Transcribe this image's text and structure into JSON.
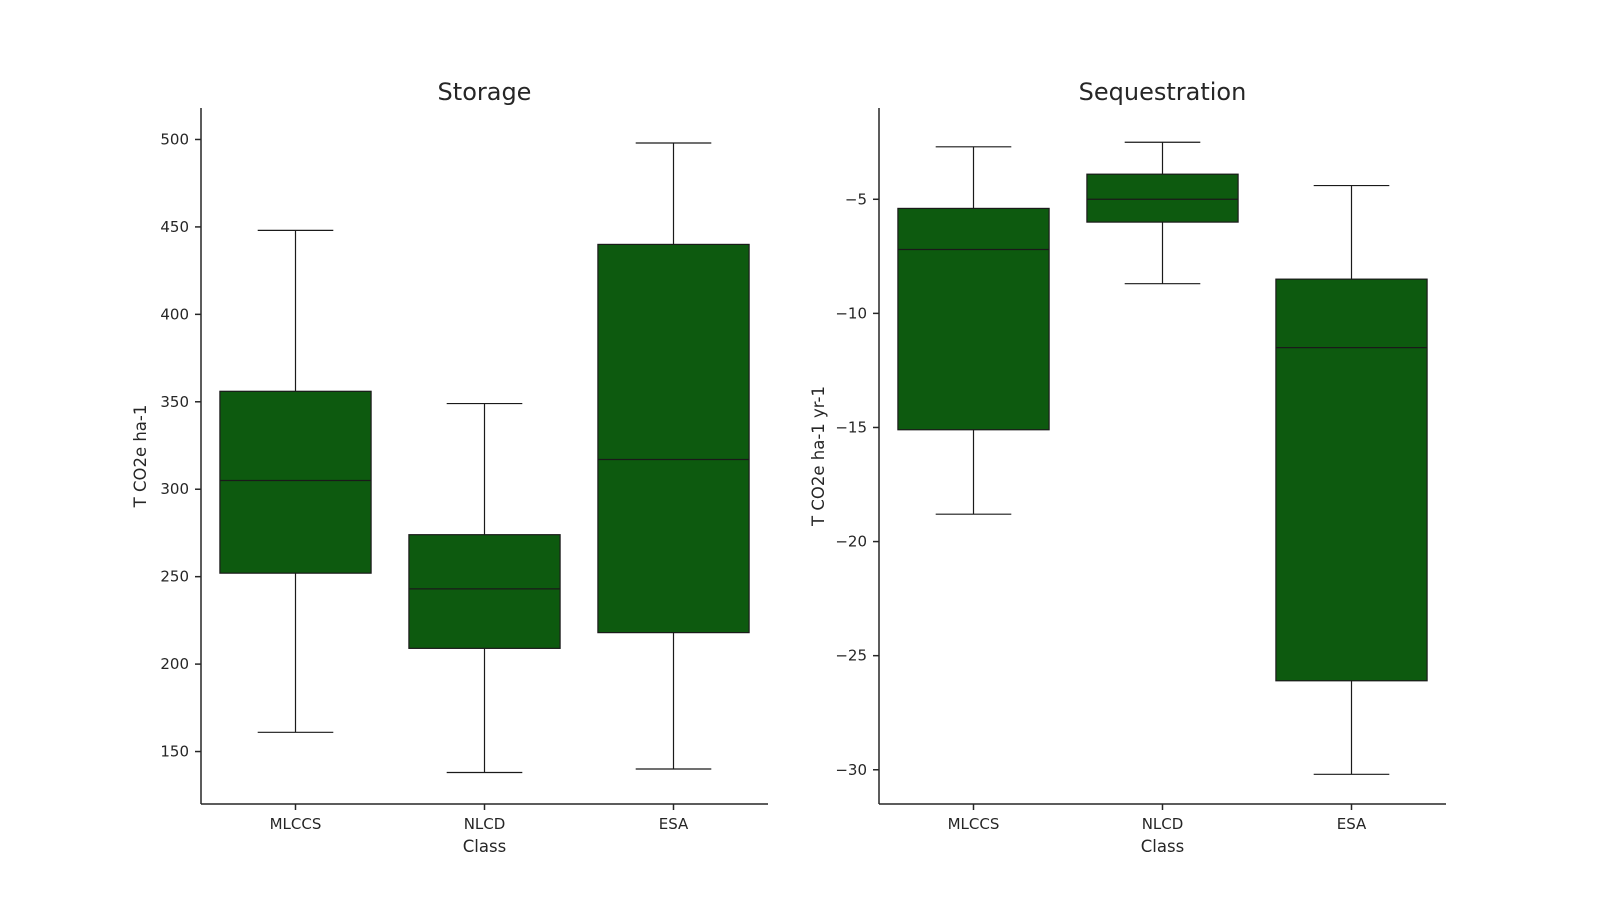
{
  "chart_data": [
    {
      "type": "box",
      "title": "Storage",
      "xlabel": "Class",
      "ylabel": "T CO2e ha-1",
      "categories": [
        "MLCCS",
        "NLCD",
        "ESA"
      ],
      "ylim": [
        120,
        518
      ],
      "yticks": [
        150,
        200,
        250,
        300,
        350,
        400,
        450,
        500
      ],
      "ytick_labels": [
        "150",
        "200",
        "250",
        "300",
        "350",
        "400",
        "450",
        "500"
      ],
      "boxes": [
        {
          "whisker_low": 161,
          "q1": 252,
          "median": 305,
          "q3": 356,
          "whisker_high": 448
        },
        {
          "whisker_low": 138,
          "q1": 209,
          "median": 243,
          "q3": 274,
          "whisker_high": 349
        },
        {
          "whisker_low": 140,
          "q1": 218,
          "median": 317,
          "q3": 440,
          "whisker_high": 498
        }
      ],
      "box_color": "#0d5a0f"
    },
    {
      "type": "box",
      "title": "Sequestration",
      "xlabel": "Class",
      "ylabel": "T CO2e ha-1 yr-1",
      "categories": [
        "MLCCS",
        "NLCD",
        "ESA"
      ],
      "ylim": [
        -31.5,
        -1.0
      ],
      "yticks": [
        -30,
        -25,
        -20,
        -15,
        -10,
        -5
      ],
      "ytick_labels": [
        "−30",
        "−25",
        "−20",
        "−15",
        "−10",
        "−5"
      ],
      "boxes": [
        {
          "whisker_low": -18.8,
          "q1": -15.1,
          "median": -7.2,
          "q3": -5.4,
          "whisker_high": -2.7
        },
        {
          "whisker_low": -8.7,
          "q1": -6.0,
          "median": -5.0,
          "q3": -3.9,
          "whisker_high": -2.5
        },
        {
          "whisker_low": -30.2,
          "q1": -26.1,
          "median": -11.5,
          "q3": -8.5,
          "whisker_high": -4.4
        }
      ],
      "box_color": "#0d5a0f"
    }
  ]
}
